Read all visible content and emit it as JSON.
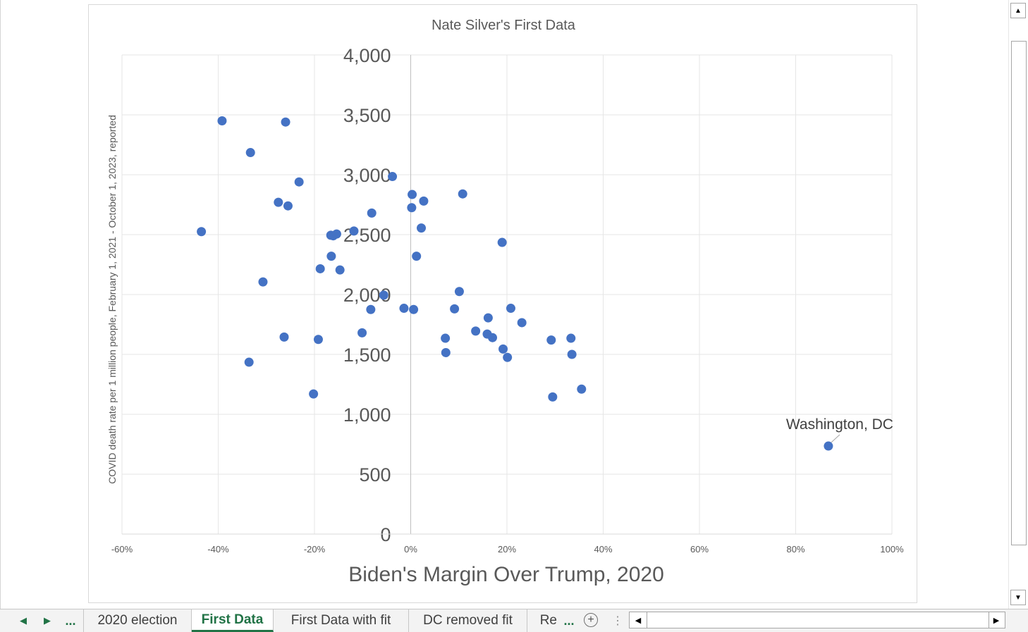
{
  "chart_data": {
    "type": "scatter",
    "title": "Nate Silver's First Data",
    "xlabel": "Biden's Margin Over Trump, 2020",
    "ylabel": "COVID death rate per 1 million people, February 1, 2021 - October 1, 2023, reported",
    "xlim": [
      -0.6,
      1.0
    ],
    "ylim": [
      0,
      4000
    ],
    "x_ticks": [
      -0.6,
      -0.4,
      -0.2,
      0,
      0.2,
      0.4,
      0.6,
      0.8,
      1.0
    ],
    "x_tick_labels": [
      "-60%",
      "-40%",
      "-20%",
      "0%",
      "20%",
      "40%",
      "60%",
      "80%",
      "100%"
    ],
    "y_ticks": [
      0,
      500,
      1000,
      1500,
      2000,
      2500,
      3000,
      3500,
      4000
    ],
    "y_tick_labels": [
      "0",
      "500",
      "1,000",
      "1,500",
      "2,000",
      "2,500",
      "3,000",
      "3,500",
      "4,000"
    ],
    "grid": true,
    "point_color": "#4472c4",
    "annotation": {
      "text": "Washington, DC",
      "x": 0.868,
      "y": 735
    },
    "points": [
      {
        "x": -0.392,
        "y": 3450
      },
      {
        "x": -0.26,
        "y": 3440
      },
      {
        "x": -0.333,
        "y": 3185
      },
      {
        "x": -0.232,
        "y": 2940
      },
      {
        "x": -0.275,
        "y": 2770
      },
      {
        "x": -0.255,
        "y": 2740
      },
      {
        "x": -0.435,
        "y": 2525
      },
      {
        "x": -0.166,
        "y": 2495
      },
      {
        "x": -0.161,
        "y": 2490
      },
      {
        "x": -0.154,
        "y": 2505
      },
      {
        "x": -0.118,
        "y": 2530
      },
      {
        "x": -0.165,
        "y": 2320
      },
      {
        "x": -0.188,
        "y": 2215
      },
      {
        "x": -0.147,
        "y": 2205
      },
      {
        "x": -0.307,
        "y": 2105
      },
      {
        "x": -0.038,
        "y": 2985
      },
      {
        "x": -0.081,
        "y": 2680
      },
      {
        "x": -0.056,
        "y": 1995
      },
      {
        "x": -0.083,
        "y": 1875
      },
      {
        "x": -0.101,
        "y": 1680
      },
      {
        "x": -0.263,
        "y": 1645
      },
      {
        "x": -0.192,
        "y": 1625
      },
      {
        "x": -0.336,
        "y": 1435
      },
      {
        "x": -0.202,
        "y": 1170
      },
      {
        "x": 0.003,
        "y": 2835
      },
      {
        "x": 0.002,
        "y": 2725
      },
      {
        "x": 0.027,
        "y": 2780
      },
      {
        "x": 0.022,
        "y": 2555
      },
      {
        "x": 0.012,
        "y": 2320
      },
      {
        "x": 0.108,
        "y": 2840
      },
      {
        "x": 0.19,
        "y": 2435
      },
      {
        "x": 0.101,
        "y": 2025
      },
      {
        "x": -0.014,
        "y": 1885
      },
      {
        "x": 0.006,
        "y": 1875
      },
      {
        "x": 0.091,
        "y": 1880
      },
      {
        "x": 0.208,
        "y": 1885
      },
      {
        "x": 0.161,
        "y": 1805
      },
      {
        "x": 0.231,
        "y": 1765
      },
      {
        "x": 0.135,
        "y": 1695
      },
      {
        "x": 0.159,
        "y": 1670
      },
      {
        "x": 0.17,
        "y": 1640
      },
      {
        "x": 0.072,
        "y": 1635
      },
      {
        "x": 0.073,
        "y": 1515
      },
      {
        "x": 0.192,
        "y": 1545
      },
      {
        "x": 0.201,
        "y": 1475
      },
      {
        "x": 0.292,
        "y": 1620
      },
      {
        "x": 0.333,
        "y": 1635
      },
      {
        "x": 0.335,
        "y": 1500
      },
      {
        "x": 0.355,
        "y": 1210
      },
      {
        "x": 0.295,
        "y": 1145
      },
      {
        "x": 0.868,
        "y": 735
      }
    ]
  },
  "tabs": {
    "more_left": "...",
    "items": [
      {
        "label": "2020 election",
        "active": false
      },
      {
        "label": "First Data",
        "active": true
      },
      {
        "label": "First Data with fit",
        "active": false
      },
      {
        "label": "DC removed fit",
        "active": false
      },
      {
        "label": "Re",
        "active": false
      }
    ],
    "more_right": "..."
  }
}
